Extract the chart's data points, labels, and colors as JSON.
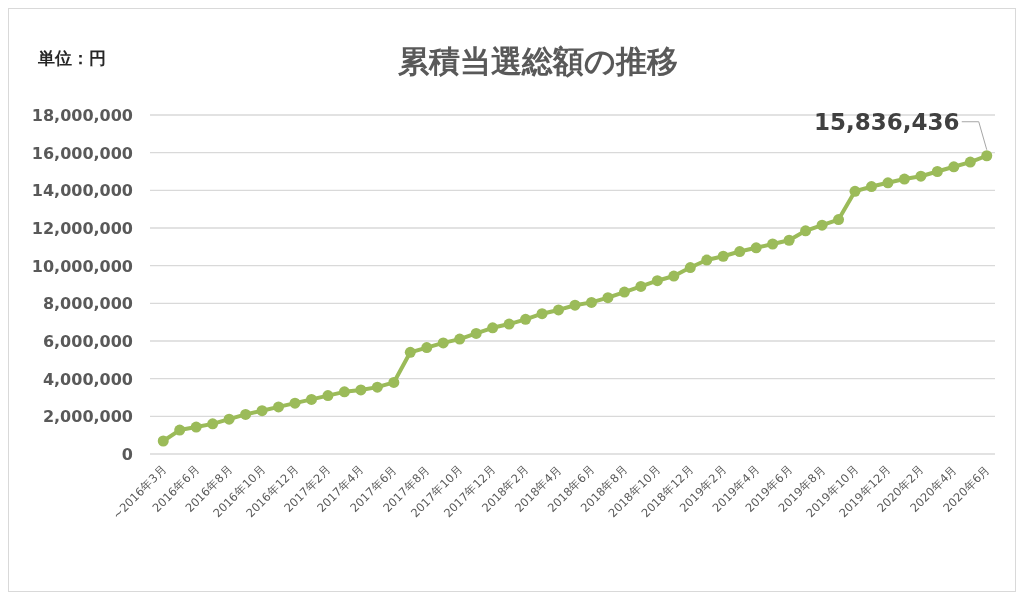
{
  "chart_data": {
    "type": "line",
    "title": "累積当選総額の推移",
    "annotations": [
      "単位：円"
    ],
    "categories": [
      "~2016年3月",
      null,
      "2016年6月",
      null,
      "2016年8月",
      null,
      "2016年10月",
      null,
      "2016年12月",
      null,
      "2017年2月",
      null,
      "2017年4月",
      null,
      "2017年6月",
      null,
      "2017年8月",
      null,
      "2017年10月",
      null,
      "2017年12月",
      null,
      "2018年2月",
      null,
      "2018年4月",
      null,
      "2018年6月",
      null,
      "2018年8月",
      null,
      "2018年10月",
      null,
      "2018年12月",
      null,
      "2019年2月",
      null,
      "2019年4月",
      null,
      "2019年6月",
      null,
      "2019年8月",
      null,
      "2019年10月",
      null,
      "2019年12月",
      null,
      "2020年2月",
      null,
      "2020年4月",
      null,
      "2020年6月"
    ],
    "series": [
      {
        "color": "#9bbb59",
        "values": [
          690000,
          1270000,
          1430000,
          1600000,
          1850000,
          2100000,
          2300000,
          2500000,
          2700000,
          2900000,
          3100000,
          3300000,
          3400000,
          3550000,
          3800000,
          5400000,
          5650000,
          5900000,
          6100000,
          6400000,
          6700000,
          6900000,
          7150000,
          7450000,
          7650000,
          7900000,
          8050000,
          8300000,
          8600000,
          8900000,
          9200000,
          9450000,
          9900000,
          10300000,
          10500000,
          10750000,
          10950000,
          11150000,
          11350000,
          11850000,
          12150000,
          12450000,
          13950000,
          14200000,
          14400000,
          14600000,
          14750000,
          15000000,
          15250000,
          15500000,
          15836436
        ],
        "value_labels": [
          null,
          null,
          null,
          null,
          null,
          null,
          null,
          null,
          null,
          null,
          null,
          null,
          null,
          null,
          null,
          null,
          null,
          null,
          null,
          null,
          null,
          null,
          null,
          null,
          null,
          null,
          null,
          null,
          null,
          null,
          null,
          null,
          null,
          null,
          null,
          null,
          null,
          null,
          null,
          null,
          null,
          null,
          null,
          null,
          null,
          null,
          null,
          null,
          null,
          null,
          "15,836,436"
        ]
      }
    ],
    "ylim": [
      0,
      18000000
    ],
    "yticks": [
      {
        "value": 0,
        "label": "0"
      },
      {
        "value": 2000000,
        "label": "2,000,000"
      },
      {
        "value": 4000000,
        "label": "4,000,000"
      },
      {
        "value": 6000000,
        "label": "6,000,000"
      },
      {
        "value": 8000000,
        "label": "8,000,000"
      },
      {
        "value": 10000000,
        "label": "10,000,000"
      },
      {
        "value": 12000000,
        "label": "12,000,000"
      },
      {
        "value": 14000000,
        "label": "14,000,000"
      },
      {
        "value": 16000000,
        "label": "16,000,000"
      },
      {
        "value": 18000000,
        "label": "18,000,000"
      }
    ],
    "grid": "y",
    "marker": "circle",
    "line_style": "solid"
  }
}
